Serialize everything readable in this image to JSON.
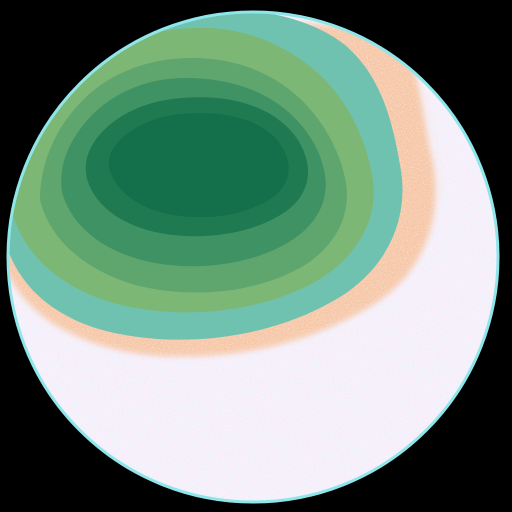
{
  "image": {
    "subject": "circular-field-of-view",
    "colors": {
      "background": "#000000",
      "rim": "#8fe6ea",
      "lower_field": "#fbf0fb",
      "lower_speckle": "#9fe8f0",
      "peach_band": "#f6c7a8",
      "teal_outer": "#6fc2b0",
      "green_outer": "#7db776",
      "green_mid": "#5ea56e",
      "green_inner": "#3f9263",
      "green_core": "#1f7a52",
      "green_center": "#14704a"
    }
  }
}
